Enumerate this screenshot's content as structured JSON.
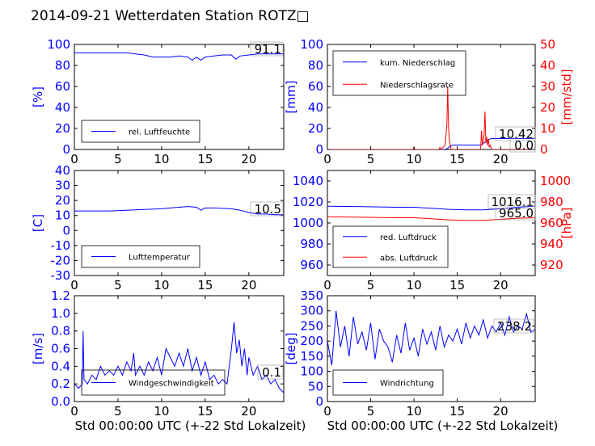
{
  "figure_title": "2014-09-21 Wetterdaten Station ROTZ□",
  "chart_data": [
    {
      "type": "line",
      "panel": "humidity",
      "ylabel": "[%]",
      "xlabel": "",
      "xlim": [
        0,
        24
      ],
      "ylim": [
        0,
        100
      ],
      "x_ticks": [
        0,
        5,
        10,
        15,
        20
      ],
      "y_ticks": [
        0,
        20,
        40,
        60,
        80,
        100
      ],
      "grid": false,
      "legend_position": "lower-left",
      "last_value_label": "91.1",
      "series": [
        {
          "name": "rel. Luftfeuchte",
          "color": "#0000ff",
          "axis": "left",
          "x": [
            0,
            2,
            4,
            6,
            7,
            8,
            9,
            10,
            11,
            12,
            13,
            13.5,
            14,
            14.5,
            15,
            16,
            17,
            18,
            18.5,
            19,
            20,
            21,
            22,
            23,
            24
          ],
          "y": [
            92,
            92,
            92,
            92,
            91,
            90,
            88,
            88,
            88,
            89,
            88,
            85,
            88,
            85,
            88,
            89,
            90,
            90,
            86,
            89,
            90,
            91,
            91,
            91,
            91.1
          ]
        }
      ]
    },
    {
      "type": "line",
      "panel": "precipitation",
      "ylabel": "[mm]",
      "ylabel_right": "[mm/std]",
      "xlabel": "",
      "xlim": [
        0,
        24
      ],
      "ylim": [
        0,
        100
      ],
      "ylim_right": [
        0,
        50
      ],
      "x_ticks": [
        0,
        5,
        10,
        15,
        20
      ],
      "y_ticks": [
        0,
        20,
        40,
        60,
        80,
        100
      ],
      "y_ticks_right": [
        0,
        10,
        20,
        30,
        40,
        50
      ],
      "grid": false,
      "legend_position": "upper-left",
      "last_value_label": "10.42",
      "last_value_label_2": "0.0",
      "series": [
        {
          "name": "kum. Niederschlag",
          "color": "#0000ff",
          "axis": "left",
          "x": [
            0,
            10,
            13.5,
            13.9,
            14.2,
            14.5,
            15,
            17.8,
            18.2,
            18.6,
            19,
            24
          ],
          "y": [
            0,
            0,
            0,
            1,
            3.5,
            4,
            4.2,
            4.2,
            7,
            9.5,
            10.4,
            10.42
          ]
        },
        {
          "name": "Niederschlagsrate",
          "color": "#ff0000",
          "axis": "right",
          "x": [
            0,
            9.9,
            10,
            10.1,
            12.9,
            13,
            13.1,
            13.6,
            13.8,
            13.9,
            14.0,
            14.1,
            14.3,
            14.4,
            17.7,
            17.8,
            17.9,
            18.0,
            18.1,
            18.2,
            18.3,
            18.4,
            18.5,
            18.6,
            18.7,
            18.8,
            19.0,
            24
          ],
          "y": [
            0,
            0,
            1,
            0,
            0,
            1,
            0,
            2,
            12,
            30,
            10,
            4,
            0,
            0,
            0,
            9,
            2,
            4,
            7,
            18,
            3,
            6,
            2,
            5,
            1,
            2,
            0,
            0
          ]
        }
      ]
    },
    {
      "type": "line",
      "panel": "temperature",
      "ylabel": "[C]",
      "xlabel": "",
      "xlim": [
        0,
        24
      ],
      "ylim": [
        -30,
        40
      ],
      "x_ticks": [
        0,
        5,
        10,
        15,
        20
      ],
      "y_ticks": [
        -30,
        -20,
        -10,
        0,
        10,
        20,
        30,
        40
      ],
      "grid": false,
      "legend_position": "lower-left",
      "last_value_label": "10.5",
      "series": [
        {
          "name": "Lufttemperatur",
          "color": "#0000ff",
          "axis": "left",
          "x": [
            0,
            2,
            4,
            6,
            8,
            10,
            11,
            12,
            13,
            14,
            14.5,
            15,
            16,
            18,
            19,
            20,
            21,
            22,
            23,
            24
          ],
          "y": [
            13,
            13,
            13,
            13.5,
            14,
            14.5,
            15,
            15.5,
            16,
            15.5,
            13.5,
            15,
            15,
            14.5,
            13.5,
            12,
            11,
            11,
            10.5,
            10.5
          ]
        }
      ]
    },
    {
      "type": "line",
      "panel": "pressure",
      "ylabel": "",
      "ylabel_right": "[hPa]",
      "xlabel": "",
      "xlim": [
        0,
        24
      ],
      "ylim": [
        950,
        1050
      ],
      "ylim_right": [
        910,
        1010
      ],
      "x_ticks": [
        0,
        5,
        10,
        15,
        20
      ],
      "y_ticks": [
        960,
        980,
        1000,
        1020,
        1040
      ],
      "y_ticks_right": [
        920,
        940,
        960,
        980,
        1000
      ],
      "grid": false,
      "legend_position": "lower-left",
      "last_value_label": "1016.1",
      "last_value_label_2": "965.0",
      "series": [
        {
          "name": "red. Luftdruck",
          "color": "#0000ff",
          "axis": "left",
          "x": [
            0,
            4,
            8,
            10,
            12,
            14,
            16,
            18,
            20,
            22,
            24
          ],
          "y": [
            1016,
            1015.5,
            1015,
            1015,
            1014,
            1013,
            1012.5,
            1012.5,
            1013.5,
            1015,
            1016.1
          ]
        },
        {
          "name": "abs. Luftdruck",
          "color": "#ff0000",
          "axis": "right",
          "x": [
            0,
            4,
            8,
            10,
            12,
            14,
            16,
            18,
            20,
            22,
            24
          ],
          "y": [
            966,
            965.5,
            965,
            965,
            964,
            963,
            962.5,
            962.5,
            963.5,
            964.5,
            965.0
          ]
        }
      ]
    },
    {
      "type": "line",
      "panel": "windspeed",
      "ylabel": "[m/s]",
      "xlabel": "Std 00:00:00 UTC (+-22 Std Lokalzeit)",
      "xlim": [
        0,
        24
      ],
      "ylim": [
        0,
        1.2
      ],
      "x_ticks": [
        0,
        5,
        10,
        15,
        20
      ],
      "y_ticks": [
        0.0,
        0.2,
        0.4,
        0.6,
        0.8,
        1.0,
        1.2
      ],
      "grid": false,
      "legend_position": "lower-left",
      "last_value_label": "0.1",
      "series": [
        {
          "name": "Windgeschwindigkeit",
          "color": "#0000ff",
          "axis": "left",
          "x": [
            0,
            0.5,
            0.9,
            1.0,
            1.1,
            1.5,
            2.0,
            2.5,
            3.0,
            3.5,
            4.0,
            4.5,
            5.0,
            5.5,
            6.0,
            6.5,
            6.8,
            7.0,
            7.5,
            8.0,
            8.5,
            9.0,
            9.5,
            10.0,
            10.5,
            11.0,
            11.5,
            12.0,
            12.5,
            13.0,
            13.5,
            14.0,
            14.5,
            15.0,
            15.5,
            16.0,
            16.5,
            17.0,
            17.5,
            18.0,
            18.3,
            18.6,
            18.9,
            19.2,
            19.5,
            19.8,
            20.0,
            20.5,
            21.0,
            21.5,
            22.0,
            22.5,
            23.0,
            23.5,
            24.0
          ],
          "y": [
            0.2,
            0.15,
            0.2,
            0.8,
            0.25,
            0.2,
            0.3,
            0.25,
            0.4,
            0.3,
            0.35,
            0.3,
            0.4,
            0.3,
            0.45,
            0.35,
            0.55,
            0.3,
            0.4,
            0.3,
            0.45,
            0.35,
            0.5,
            0.3,
            0.6,
            0.5,
            0.4,
            0.55,
            0.4,
            0.6,
            0.35,
            0.5,
            0.3,
            0.45,
            0.25,
            0.3,
            0.2,
            0.25,
            0.2,
            0.6,
            0.9,
            0.55,
            0.7,
            0.4,
            0.6,
            0.3,
            0.5,
            0.3,
            0.4,
            0.25,
            0.3,
            0.2,
            0.25,
            0.15,
            0.1
          ]
        }
      ]
    },
    {
      "type": "line",
      "panel": "winddirection",
      "ylabel": "[deg]",
      "xlabel": "Std 00:00:00 UTC (+-22 Std Lokalzeit)",
      "xlim": [
        0,
        24
      ],
      "ylim": [
        0,
        350
      ],
      "x_ticks": [
        0,
        5,
        10,
        15,
        20
      ],
      "y_ticks": [
        0,
        50,
        100,
        150,
        200,
        250,
        300,
        350
      ],
      "grid": false,
      "legend_position": "lower-left",
      "last_value_label": "238.2",
      "series": [
        {
          "name": "Windrichtung",
          "color": "#0000ff",
          "axis": "left",
          "x": [
            0,
            0.5,
            1.0,
            1.5,
            2.0,
            2.5,
            3.0,
            3.5,
            4.0,
            4.5,
            5.0,
            5.5,
            6.0,
            6.5,
            7.0,
            7.5,
            8.0,
            8.5,
            9.0,
            9.5,
            10.0,
            10.5,
            11.0,
            11.5,
            12.0,
            12.5,
            13.0,
            13.5,
            14.0,
            14.5,
            15.0,
            15.5,
            16.0,
            16.5,
            17.0,
            17.5,
            18.0,
            18.5,
            19.0,
            19.5,
            20.0,
            20.5,
            21.0,
            21.5,
            22.0,
            22.5,
            23.0,
            23.5,
            24.0
          ],
          "y": [
            200,
            120,
            300,
            180,
            250,
            150,
            280,
            190,
            230,
            170,
            260,
            140,
            240,
            200,
            180,
            130,
            220,
            160,
            260,
            170,
            210,
            150,
            240,
            190,
            230,
            170,
            250,
            180,
            220,
            200,
            240,
            190,
            260,
            210,
            250,
            220,
            270,
            210,
            250,
            230,
            260,
            220,
            280,
            230,
            250,
            240,
            290,
            230,
            238
          ]
        }
      ]
    }
  ]
}
